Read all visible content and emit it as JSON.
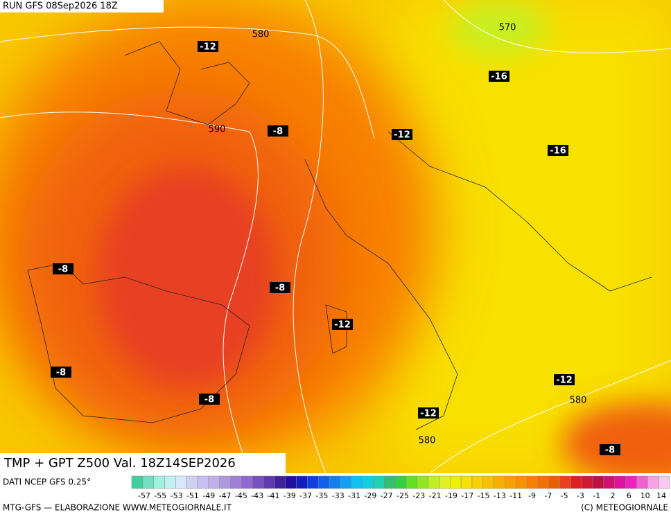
{
  "header": {
    "run": "RUN GFS 08Sep2026 18Z"
  },
  "contour_labels": [
    "580",
    "570",
    "590",
    "580",
    "580"
  ],
  "temperature_labels": [
    "-12",
    "-16",
    "-8",
    "-12",
    "-16",
    "-8",
    "-8",
    "-12",
    "-8",
    "-12",
    "-8",
    "-12",
    "-8"
  ],
  "footer": {
    "title": "TMP + GPT Z500 Val. 18Z14SEP2026",
    "source": "DATI NCEP GFS 0.25°",
    "credit": "MTG-GFS — ELABORAZIONE WWW.METEOGIORNALE.IT",
    "copyright": "(C) METEOGIORNALE"
  },
  "colorbar": {
    "labels": [
      "-57",
      "-55",
      "-53",
      "-51",
      "-49",
      "-47",
      "-45",
      "-43",
      "-41",
      "-39",
      "-37",
      "-35",
      "-33",
      "-31",
      "-29",
      "-27",
      "-25",
      "-23",
      "-21",
      "-19",
      "-17",
      "-15",
      "-13",
      "-11",
      "-9",
      "-7",
      "-5",
      "-3",
      "-1",
      "2",
      "6",
      "10",
      "14"
    ],
    "colors": [
      "#40d0a0",
      "#70e0c0",
      "#a0f0e0",
      "#c0f0f0",
      "#d8e8f8",
      "#d0d0f0",
      "#c8c0f0",
      "#c0b0e8",
      "#b098e0",
      "#a080d8",
      "#9068d0",
      "#7850c0",
      "#6038b0",
      "#4020a0",
      "#2010a0",
      "#1020c0",
      "#1040e0",
      "#1060f0",
      "#1080f0",
      "#10a0f0",
      "#10c0f0",
      "#10d0e0",
      "#20d0b0",
      "#30c070",
      "#30d040",
      "#60e020",
      "#90e820",
      "#c0f020",
      "#e0f020",
      "#f0f000",
      "#f8e000",
      "#f8d000",
      "#f8c000",
      "#f8b000",
      "#f8a000",
      "#f89000",
      "#f88000",
      "#f07000",
      "#e86000",
      "#e84020",
      "#e02020",
      "#d01830",
      "#c01040",
      "#d01070",
      "#e010a0",
      "#f020c0",
      "#f060d0",
      "#f8a0e0",
      "#f8c8f0"
    ]
  }
}
